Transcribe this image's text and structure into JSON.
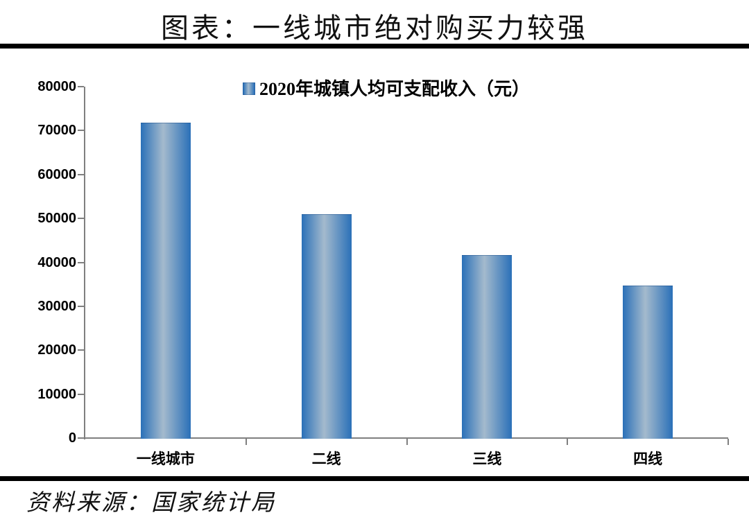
{
  "title": "图表：一线城市绝对购买力较强",
  "legend": "2020年城镇人均可支配收入（元）",
  "source": "资料来源：国家统计局",
  "colors": {
    "bar_edge": "#2a70b8",
    "bar_center": "#a4bacd",
    "axis": "#7f7f7f",
    "rule": "#000000",
    "text": "#000000"
  },
  "chart_data": {
    "type": "bar",
    "categories": [
      "一线城市",
      "二线",
      "三线",
      "四线"
    ],
    "values": [
      71800,
      51000,
      41700,
      34700
    ],
    "series_name": "2020年城镇人均可支配收入（元）",
    "title": "图表：一线城市绝对购买力较强",
    "xlabel": "",
    "ylabel": "",
    "ylim": [
      0,
      80000
    ],
    "yticks": [
      0,
      10000,
      20000,
      30000,
      40000,
      50000,
      60000,
      70000,
      80000
    ],
    "grid": false,
    "legend_position": "top-center",
    "source_note": "资料来源：国家统计局"
  }
}
